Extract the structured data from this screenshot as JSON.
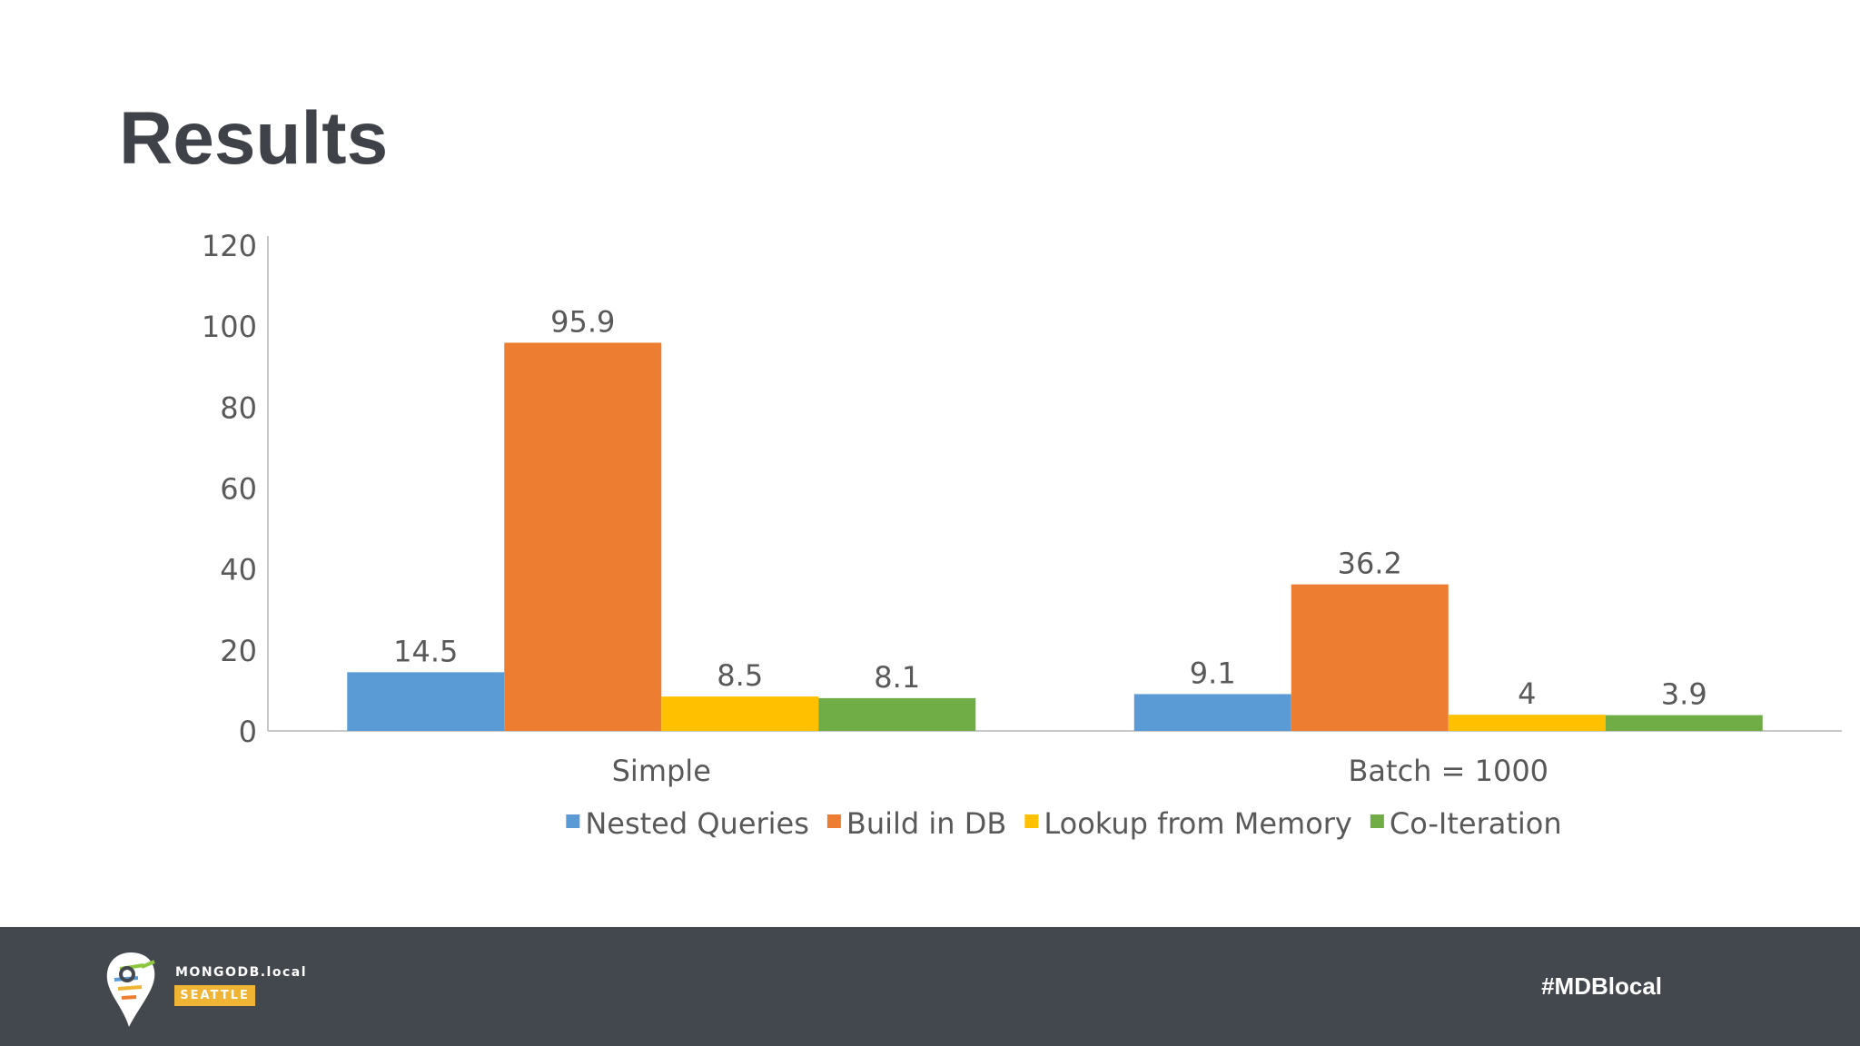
{
  "slide": {
    "title": "Results"
  },
  "chart_data": {
    "type": "bar",
    "categories": [
      "Simple",
      "Batch = 1000"
    ],
    "series": [
      {
        "name": "Nested Queries",
        "values": [
          14.5,
          9.1
        ],
        "labels": [
          "14.5",
          "9.1"
        ],
        "color": "#5b9bd5"
      },
      {
        "name": "Build in DB",
        "values": [
          95.9,
          36.2
        ],
        "labels": [
          "95.9",
          "36.2"
        ],
        "color": "#ed7d31"
      },
      {
        "name": "Lookup from Memory",
        "values": [
          8.5,
          4
        ],
        "labels": [
          "8.5",
          "4"
        ],
        "color": "#ffc000"
      },
      {
        "name": "Co-Iteration",
        "values": [
          8.1,
          3.9
        ],
        "labels": [
          "8.1",
          "3.9"
        ],
        "color": "#70ad47"
      }
    ],
    "ylim": [
      0,
      120
    ],
    "yticks": [
      "0",
      "20",
      "40",
      "60",
      "80",
      "100",
      "120"
    ],
    "grid": false,
    "legend_position": "bottom"
  },
  "footer": {
    "logo_wordmark": "MONGODB.local",
    "logo_badge": "SEATTLE",
    "hashtag": "#MDBlocal",
    "logo_badge_color": "#f0b434",
    "background_color": "#43474e"
  }
}
